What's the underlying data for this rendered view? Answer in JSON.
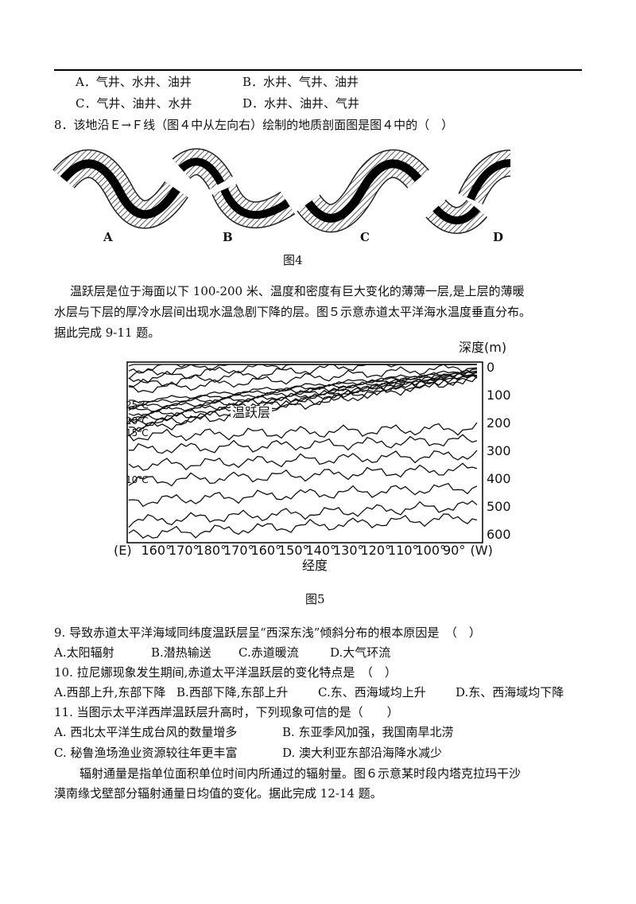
{
  "question_7_options": [
    "A．气井、水井、油井",
    "B．水井、气井、油井",
    "C．气井、油井、水井",
    "D．水井、油井、气井"
  ],
  "question_8": {
    "stem": "8．该地沿Ｅ→Ｆ线（图４中从左向右）绘制的地质剖面图是图４中的（　）"
  },
  "figure_4": {
    "labels": [
      "A",
      "B",
      "C",
      "D"
    ],
    "caption": "图4"
  },
  "passage_1": {
    "lines": [
      "温跃层是位于海面以下 100-200 米、温度和密度有巨大变化的薄薄一层,是上层的薄暖",
      "水层与下层的厚冷水层间出现水温急剧下降的层。图５示意赤道太平洋海水温度垂直分布。",
      "据此完成 9-11 题。"
    ]
  },
  "figure_5": {
    "y_axis_title": "深度(m)",
    "depth_ticks": [
      0,
      100,
      200,
      300,
      400,
      500,
      600
    ],
    "x_axis_labels": [
      "(E)",
      "160°",
      "170°",
      "180°",
      "170°",
      "160°",
      "150°",
      "140°",
      "130°",
      "120°",
      "110°",
      "100°",
      "90°",
      "(W)"
    ],
    "x_axis_title": "经度",
    "layer_label": "温跃层",
    "isotherm_labels": [
      "25℃",
      "20℃",
      "15℃",
      "10℃"
    ],
    "caption": "图5"
  },
  "questions": [
    {
      "stem": "9. 导致赤道太平洋海域同纬度温跃层呈“西深东浅”倾斜分布的根本原因是　（　）",
      "options": [
        "A.太阳辐射",
        "B.潜热输送",
        "C.赤道暖流",
        "D.大气环流"
      ]
    },
    {
      "stem": "10. 拉尼娜现象发生期间,赤道太平洋温跃层的变化特点是　（　）",
      "options": [
        "A.西部上升,东部下降",
        "B.西部下降,东部上升",
        "C.东、西海域均上升",
        "D.东、西海域均下降"
      ]
    },
    {
      "stem": "11. 当图示太平洋西岸温跃层升高时，下列现象可信的是（　　）",
      "options": [
        "A.  西北太平洋生成台风的数量增多",
        "B.  东亚季风加强，我国南旱北涝",
        "C.  秘鲁渔场渔业资源较往年更丰富",
        "D.  澳大利亚东部沿海降水减少"
      ]
    }
  ],
  "passage_2": {
    "lines": [
      "辐射通量是指单位面积单位时间内所通过的辐射量。图６示意某时段内塔克拉玛干沙",
      "漠南缘戈壁部分辐射通量日均值的变化。据此完成 12-14 题。"
    ]
  }
}
